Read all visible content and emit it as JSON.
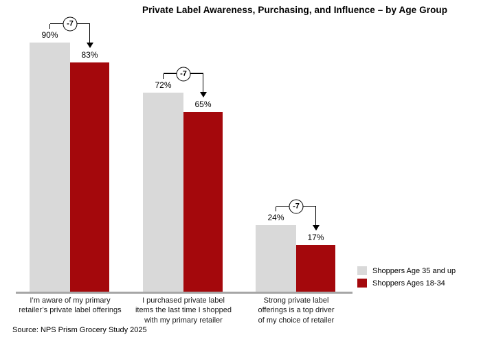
{
  "title": "Private Label Awareness, Purchasing, and Influence – by Age Group",
  "source_note": "Source: NPS Prism Grocery Study 2025",
  "colors": {
    "age_35_up": "#D9D9D9",
    "age_18_34": "#A4080C",
    "axis_line": "#A6A6A6",
    "annotation": "#000000"
  },
  "legend": {
    "items": [
      {
        "label": "Shoppers Age 35 and up",
        "color": "#D9D9D9"
      },
      {
        "label": "Shoppers Ages 18-34",
        "color": "#A4080C"
      }
    ]
  },
  "chart_data": {
    "type": "bar",
    "title": "Private Label Awareness, Purchasing, and Influence – by Age Group",
    "categories": [
      "I’m aware of my primary\nretailer’s private label offerings",
      "I purchased private label\nitems the last time I shopped\nwith my primary retailer",
      "Strong private label\nofferings is a top driver\nof my choice of retailer"
    ],
    "series": [
      {
        "name": "Shoppers Age 35 and up",
        "color": "#D9D9D9",
        "values": [
          90,
          72,
          24
        ]
      },
      {
        "name": "Shoppers Ages 18-34",
        "color": "#A4080C",
        "values": [
          83,
          65,
          17
        ]
      }
    ],
    "annotations": [
      {
        "category_index": 0,
        "label": "-7"
      },
      {
        "category_index": 1,
        "label": "-7"
      },
      {
        "category_index": 2,
        "label": "-7"
      }
    ],
    "value_suffix": "%",
    "ylim": [
      0,
      100
    ],
    "grid": false,
    "legend_position": "right"
  }
}
